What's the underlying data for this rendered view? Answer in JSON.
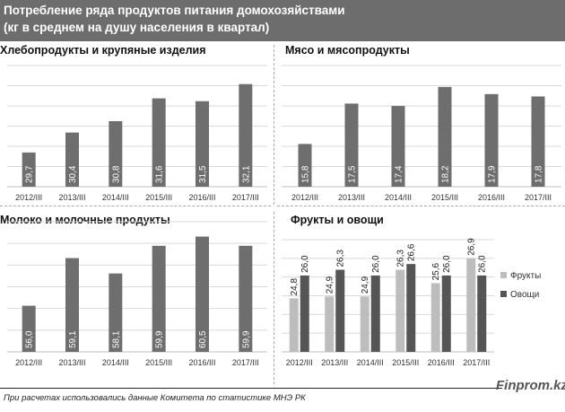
{
  "header": {
    "line1": "Потребление ряда продуктов питания домохозяйствами",
    "line2": "(кг в среднем на душу  населения в квартал)"
  },
  "footnote": "При расчетах использовались данные Комитета по статистике МНЭ РК",
  "brand": "Finprom.kz",
  "colors": {
    "header_bg": "#6d6d6d",
    "bar": "#6e6e6e",
    "bar_light": "#bdbdbd",
    "bar_dark": "#555555",
    "grid": "#d9d9d9"
  },
  "chart_data": [
    {
      "type": "bar",
      "title": "Хлебопродукты  и крупяные изделия",
      "categories": [
        "2012/III",
        "2013/III",
        "2014/III",
        "2015/III",
        "2016/III",
        "2017/III"
      ],
      "values": [
        29.7,
        30.4,
        30.8,
        31.6,
        31.5,
        32.1
      ],
      "labels": [
        "29,7",
        "30,4",
        "30,8",
        "31,6",
        "31,5",
        "32,1"
      ],
      "ylim": [
        28.5,
        32.5
      ],
      "grid": true
    },
    {
      "type": "bar",
      "title": "Мясо и мясопродукты",
      "categories": [
        "2012/III",
        "2013/III",
        "2014/III",
        "2015/III",
        "2016/III",
        "2017/III"
      ],
      "values": [
        15.8,
        17.5,
        17.4,
        18.2,
        17.9,
        17.8
      ],
      "labels": [
        "15,8",
        "17,5",
        "17,4",
        "18,2",
        "17,9",
        "17,8"
      ],
      "ylim": [
        14.0,
        18.8
      ],
      "grid": true
    },
    {
      "type": "bar",
      "title": "Молоко и молочные  продукты",
      "categories": [
        "2012/III",
        "2013/III",
        "2014/III",
        "2015/III",
        "2016/III",
        "2017/III"
      ],
      "values": [
        56.0,
        59.1,
        58.1,
        59.9,
        60.5,
        59.9
      ],
      "labels": [
        "56,0",
        "59,1",
        "58,1",
        "59,9",
        "60,5",
        "59,9"
      ],
      "ylim": [
        53.0,
        61.0
      ],
      "grid": true
    },
    {
      "type": "bar",
      "title": "Фрукты и овощи",
      "categories": [
        "2012/III",
        "2013/III",
        "2014/III",
        "2015/III",
        "2016/III",
        "2017/III"
      ],
      "series": [
        {
          "name": "Фрукты",
          "values": [
            24.8,
            24.9,
            24.9,
            26.3,
            25.6,
            26.9
          ],
          "labels": [
            "24,8",
            "24,9",
            "24,9",
            "26,3",
            "25,6",
            "26,9"
          ]
        },
        {
          "name": "Овощи",
          "values": [
            26.0,
            26.3,
            26.0,
            26.6,
            26.0,
            26.0
          ],
          "labels": [
            "26,0",
            "26,3",
            "26,0",
            "26,6",
            "26,0",
            "26,0"
          ]
        }
      ],
      "ylim": [
        22.0,
        27.5
      ],
      "grid": true,
      "legend": "right"
    }
  ]
}
